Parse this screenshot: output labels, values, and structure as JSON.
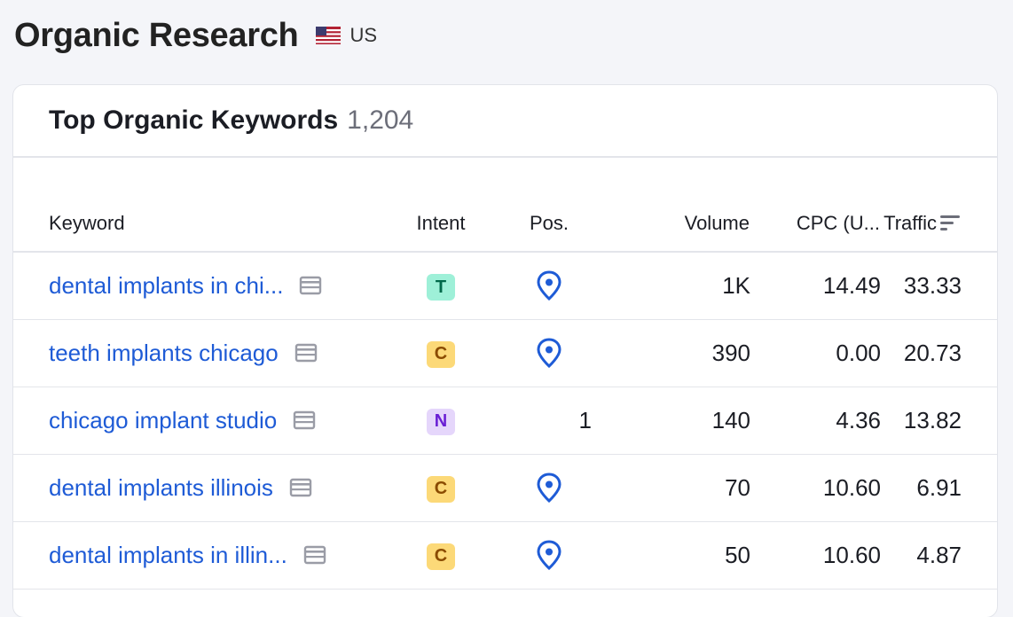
{
  "page": {
    "title": "Organic Research",
    "database_label": "US",
    "flag_icon": "us-flag-icon"
  },
  "card": {
    "title": "Top Organic Keywords",
    "count": "1,204"
  },
  "table": {
    "columns": {
      "keyword": "Keyword",
      "intent": "Intent",
      "position": "Pos.",
      "volume": "Volume",
      "cpc": "CPC (U...",
      "traffic": "Traffic"
    },
    "rows": [
      {
        "keyword": "dental implants in chi...",
        "intent": "T",
        "position": "",
        "volume": "1K",
        "cpc": "14.49",
        "traffic": "33.33"
      },
      {
        "keyword": "teeth implants chicago",
        "intent": "C",
        "position": "",
        "volume": "390",
        "cpc": "0.00",
        "traffic": "20.73"
      },
      {
        "keyword": "chicago implant studio",
        "intent": "N",
        "position": "1",
        "volume": "140",
        "cpc": "4.36",
        "traffic": "13.82"
      },
      {
        "keyword": "dental implants illinois",
        "intent": "C",
        "position": "",
        "volume": "70",
        "cpc": "10.60",
        "traffic": "6.91"
      },
      {
        "keyword": "dental implants in illin...",
        "intent": "C",
        "position": "",
        "volume": "50",
        "cpc": "10.60",
        "traffic": "4.87"
      }
    ]
  },
  "icons": {
    "position_local": "map-pin-icon",
    "serp": "serp-page-icon",
    "sort": "sort-descending-icon"
  },
  "colors": {
    "link": "#1e5bd6",
    "intent_T_bg": "#9ef0d8",
    "intent_T_fg": "#00694a",
    "intent_C_bg": "#fcd978",
    "intent_C_fg": "#8a4b00",
    "intent_N_bg": "#e5d6fb",
    "intent_N_fg": "#6a1fd4"
  }
}
